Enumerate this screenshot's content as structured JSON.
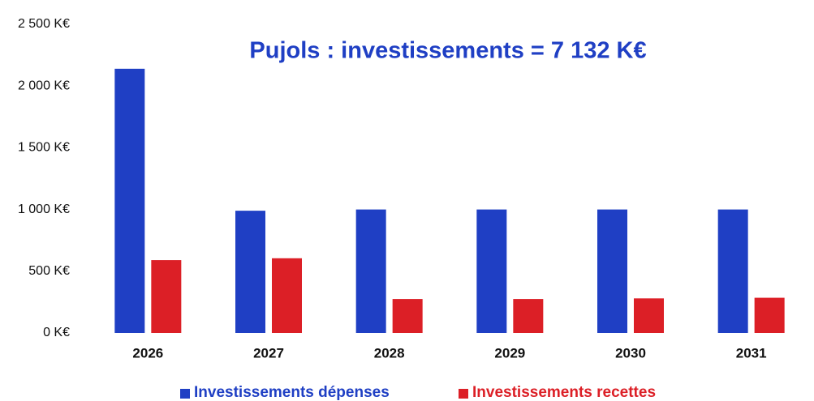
{
  "chart_data": {
    "type": "bar",
    "title": "Pujols : investissements = 7 132 K€",
    "categories": [
      "2026",
      "2027",
      "2028",
      "2029",
      "2030",
      "2031"
    ],
    "series": [
      {
        "name": "Investissements dépenses",
        "color": "#1f3fc4",
        "values": [
          2140,
          990,
          1000,
          1000,
          1000,
          1000
        ]
      },
      {
        "name": "Investissements recettes",
        "color": "#dc1f26",
        "values": [
          590,
          605,
          275,
          275,
          280,
          285
        ]
      }
    ],
    "ylim": [
      0,
      2500
    ],
    "yticks": [
      {
        "value": 0,
        "label": "0 K€"
      },
      {
        "value": 500,
        "label": "500 K€"
      },
      {
        "value": 1000,
        "label": "1 000 K€"
      },
      {
        "value": 1500,
        "label": "1 500 K€"
      },
      {
        "value": 2000,
        "label": "2 000 K€"
      },
      {
        "value": 2500,
        "label": "2 500 K€"
      }
    ],
    "grid": false,
    "legend": "bottom"
  }
}
